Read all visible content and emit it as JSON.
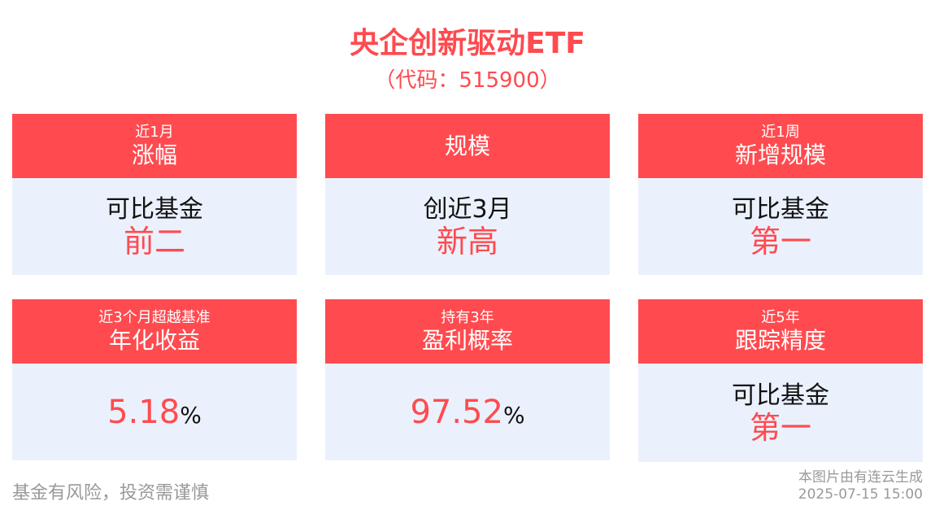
{
  "title": "央企创新驱动ETF",
  "code": "（代码：515900）",
  "cards": [
    {
      "sub": "近1月",
      "label": "涨幅",
      "key": "可比基金",
      "value": "前二"
    },
    {
      "sub": "",
      "label": "规模",
      "key": "创近3月",
      "value": "新高"
    },
    {
      "sub": "近1周",
      "label": "新增规模",
      "key": "可比基金",
      "value": "第一"
    },
    {
      "sub": "近3个月超越基准",
      "label": "年化收益",
      "number": "5.18",
      "unit": "%"
    },
    {
      "sub": "持有3年",
      "label": "盈利概率",
      "number": "97.52",
      "unit": "%"
    },
    {
      "sub": "近5年",
      "label": "跟踪精度",
      "key": "可比基金",
      "value": "第一"
    }
  ],
  "footer": {
    "disclaimer": "基金有风险，投资需谨慎",
    "source": "本图片由有连云生成",
    "timestamp": "2025-07-15 15:00"
  },
  "colors": {
    "accent": "#ff4b4f",
    "panel": "#eaf1fd"
  }
}
